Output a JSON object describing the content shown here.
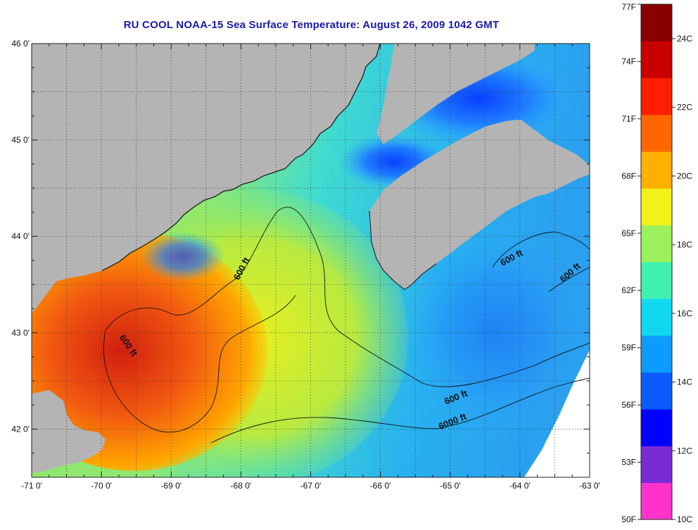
{
  "title": "RU COOL  NOAA-15  Sea Surface Temperature:  August 26, 2009 1042 GMT",
  "map": {
    "lon_range": [
      -71,
      -63
    ],
    "lat_range": [
      41.5,
      46
    ],
    "lon_ticks": [
      {
        "value": -71,
        "label": "-71 0'"
      },
      {
        "value": -70,
        "label": "-70 0'"
      },
      {
        "value": -69,
        "label": "-69 0'"
      },
      {
        "value": -68,
        "label": "-68 0'"
      },
      {
        "value": -67,
        "label": "-67 0'"
      },
      {
        "value": -66,
        "label": "-66 0'"
      },
      {
        "value": -65,
        "label": "-65 0'"
      },
      {
        "value": -64,
        "label": "-64 0'"
      },
      {
        "value": -63,
        "label": "-63 0'"
      }
    ],
    "lat_ticks": [
      {
        "value": 46,
        "label": "46 0'"
      },
      {
        "value": 45,
        "label": "45 0'"
      },
      {
        "value": 44,
        "label": "44 0'"
      },
      {
        "value": 43,
        "label": "43 0'"
      },
      {
        "value": 42,
        "label": "42 0'"
      }
    ],
    "contour_labels": [
      {
        "text": "600 ft",
        "lon": -67.95,
        "lat": 43.65,
        "angle": -62
      },
      {
        "text": "600 ft",
        "lon": -69.65,
        "lat": 42.85,
        "angle": 55
      },
      {
        "text": "600 ft",
        "lon": -64.1,
        "lat": 43.75,
        "angle": -28
      },
      {
        "text": "600 ft",
        "lon": -63.25,
        "lat": 43.6,
        "angle": -42
      },
      {
        "text": "600 ft",
        "lon": -64.9,
        "lat": 42.3,
        "angle": -22
      },
      {
        "text": "6000 ft",
        "lon": -64.95,
        "lat": 42.05,
        "angle": -22
      }
    ],
    "colors": {
      "land": "#b4b4b4",
      "water_cold": "#2aa6f0",
      "water_mid": "#c8ea3c",
      "water_warm": "#e23a10",
      "contour": "#111111",
      "grid": "#333333"
    }
  },
  "colorbar": {
    "colors": [
      "#ff33cc",
      "#7a2bd6",
      "#0000ff",
      "#0a5cff",
      "#0c9cff",
      "#10d8f0",
      "#40f0b0",
      "#9cf05a",
      "#f2f21a",
      "#ffb000",
      "#ff6600",
      "#ff1e00",
      "#c80000",
      "#8a0000"
    ],
    "fahrenheit": [
      {
        "value": 77,
        "label": "77F"
      },
      {
        "value": 74,
        "label": "74F"
      },
      {
        "value": 71,
        "label": "71F"
      },
      {
        "value": 68,
        "label": "68F"
      },
      {
        "value": 65,
        "label": "65F"
      },
      {
        "value": 62,
        "label": "62F"
      },
      {
        "value": 59,
        "label": "59F"
      },
      {
        "value": 56,
        "label": "56F"
      },
      {
        "value": 53,
        "label": "53F"
      },
      {
        "value": 50,
        "label": "50F"
      }
    ],
    "celsius": [
      {
        "value": 24,
        "label": "24C"
      },
      {
        "value": 22,
        "label": "22C"
      },
      {
        "value": 20,
        "label": "20C"
      },
      {
        "value": 18,
        "label": "18C"
      },
      {
        "value": 16,
        "label": "16C"
      },
      {
        "value": 14,
        "label": "14C"
      },
      {
        "value": 12,
        "label": "12C"
      },
      {
        "value": 10,
        "label": "10C"
      }
    ]
  }
}
